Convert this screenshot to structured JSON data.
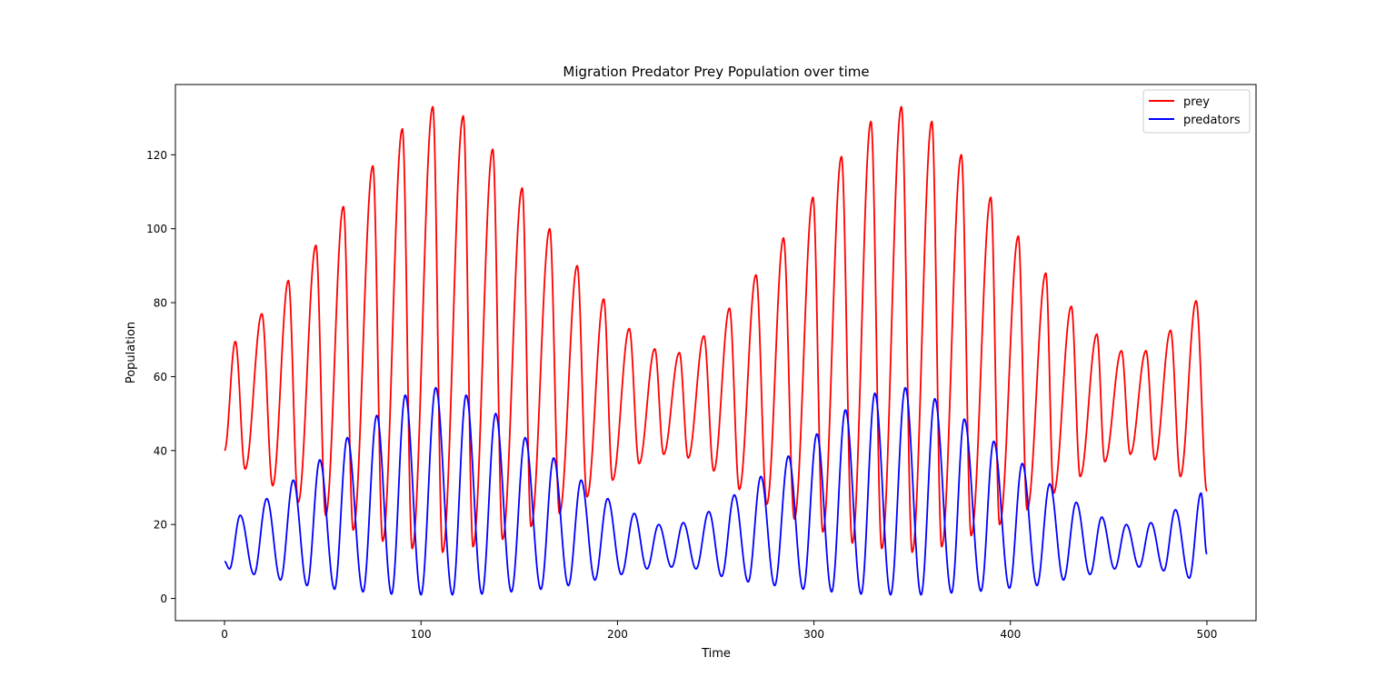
{
  "chart_data": {
    "type": "line",
    "title": "Migration Predator Prey Population over time",
    "xlabel": "Time",
    "ylabel": "Population",
    "xlim": [
      -25,
      525
    ],
    "ylim": [
      -6,
      139
    ],
    "xticks": [
      0,
      100,
      200,
      300,
      400,
      500
    ],
    "yticks": [
      0,
      20,
      40,
      60,
      80,
      100,
      120
    ],
    "grid": false,
    "legend": "top-right",
    "series": [
      {
        "name": "prey",
        "color": "#ff0000",
        "start": 40,
        "end": 29,
        "peaks": [
          [
            5.5,
            69.5
          ],
          [
            19,
            77
          ],
          [
            32.5,
            86
          ],
          [
            46.5,
            95.5
          ],
          [
            60.5,
            106
          ],
          [
            75.5,
            117
          ],
          [
            90.5,
            127
          ],
          [
            106,
            133
          ],
          [
            121.5,
            130.5
          ],
          [
            136.5,
            121.5
          ],
          [
            151.5,
            111
          ],
          [
            165.5,
            100
          ],
          [
            179.5,
            90
          ],
          [
            193,
            81
          ],
          [
            206,
            73
          ],
          [
            219,
            67.5
          ],
          [
            231.5,
            66.5
          ],
          [
            244,
            71
          ],
          [
            257,
            78.5
          ],
          [
            270.5,
            87.5
          ],
          [
            284.5,
            97.5
          ],
          [
            299.5,
            108.5
          ],
          [
            314,
            119.5
          ],
          [
            329,
            129
          ],
          [
            344.5,
            133
          ],
          [
            360,
            129
          ],
          [
            375,
            120
          ],
          [
            390,
            108.5
          ],
          [
            404,
            98
          ],
          [
            418,
            88
          ],
          [
            431,
            79
          ],
          [
            444,
            71.5
          ],
          [
            456.5,
            67
          ],
          [
            469,
            67
          ],
          [
            481.5,
            72.5
          ],
          [
            494.5,
            80.5
          ]
        ],
        "troughs": [
          [
            10.5,
            35
          ],
          [
            24.5,
            30.5
          ],
          [
            37.5,
            26
          ],
          [
            51.5,
            22.5
          ],
          [
            65.5,
            18.5
          ],
          [
            80.5,
            15.5
          ],
          [
            95.5,
            13.5
          ],
          [
            111,
            12.5
          ],
          [
            126.5,
            14
          ],
          [
            141.5,
            16
          ],
          [
            156,
            19.5
          ],
          [
            170.5,
            23
          ],
          [
            184.5,
            27.5
          ],
          [
            197.5,
            32
          ],
          [
            211,
            36.5
          ],
          [
            223.5,
            39
          ],
          [
            236,
            38
          ],
          [
            249,
            34.5
          ],
          [
            262,
            29.5
          ],
          [
            276,
            25.5
          ],
          [
            290,
            21.5
          ],
          [
            304.5,
            18
          ],
          [
            319.5,
            15
          ],
          [
            334.5,
            13.5
          ],
          [
            350,
            12.5
          ],
          [
            365,
            14
          ],
          [
            380,
            17
          ],
          [
            394.5,
            20
          ],
          [
            408.5,
            24
          ],
          [
            422,
            28.5
          ],
          [
            435.5,
            33
          ],
          [
            448,
            37
          ],
          [
            461,
            39
          ],
          [
            473.5,
            37.5
          ],
          [
            486.5,
            33
          ]
        ]
      },
      {
        "name": "predators",
        "color": "#0000ff",
        "start": 10,
        "end": 12,
        "peaks": [
          [
            8,
            22.5
          ],
          [
            21.5,
            27
          ],
          [
            35,
            32
          ],
          [
            48.5,
            37.5
          ],
          [
            62.5,
            43.5
          ],
          [
            77.5,
            49.5
          ],
          [
            92,
            55
          ],
          [
            107.5,
            57
          ],
          [
            123,
            55
          ],
          [
            138,
            50
          ],
          [
            153,
            43.5
          ],
          [
            167.5,
            38
          ],
          [
            181.5,
            32
          ],
          [
            195,
            27
          ],
          [
            208.5,
            23
          ],
          [
            221,
            20
          ],
          [
            233.5,
            20.5
          ],
          [
            246.5,
            23.5
          ],
          [
            259.5,
            28
          ],
          [
            273,
            33
          ],
          [
            287,
            38.5
          ],
          [
            301.5,
            44.5
          ],
          [
            316,
            51
          ],
          [
            331,
            55.5
          ],
          [
            346.5,
            57
          ],
          [
            361.5,
            54
          ],
          [
            376.5,
            48.5
          ],
          [
            391.5,
            42.5
          ],
          [
            406,
            36.5
          ],
          [
            420,
            31
          ],
          [
            433.5,
            26
          ],
          [
            446.5,
            22
          ],
          [
            459,
            20
          ],
          [
            471.5,
            20.5
          ],
          [
            484,
            24
          ],
          [
            497,
            28.5
          ]
        ],
        "troughs": [
          [
            2.5,
            8
          ],
          [
            15,
            6.5
          ],
          [
            28.5,
            5
          ],
          [
            42,
            3.5
          ],
          [
            56,
            2.5
          ],
          [
            70.5,
            1.8
          ],
          [
            85,
            1.2
          ],
          [
            100,
            1
          ],
          [
            116,
            1
          ],
          [
            131,
            1.2
          ],
          [
            146,
            1.8
          ],
          [
            161,
            2.5
          ],
          [
            175,
            3.5
          ],
          [
            188.5,
            5
          ],
          [
            202,
            6.5
          ],
          [
            215,
            8
          ],
          [
            227.5,
            8.5
          ],
          [
            240,
            8
          ],
          [
            253,
            6
          ],
          [
            266.5,
            4.5
          ],
          [
            280,
            3.5
          ],
          [
            294.5,
            2.5
          ],
          [
            309,
            1.8
          ],
          [
            324,
            1.2
          ],
          [
            339,
            1
          ],
          [
            354.5,
            1
          ],
          [
            370,
            1.5
          ],
          [
            385,
            2
          ],
          [
            399.5,
            2.8
          ],
          [
            413.5,
            3.5
          ],
          [
            427,
            5
          ],
          [
            440.5,
            6.5
          ],
          [
            453,
            8
          ],
          [
            465.5,
            8.5
          ],
          [
            478,
            7.5
          ],
          [
            491,
            5.5
          ]
        ]
      }
    ]
  }
}
